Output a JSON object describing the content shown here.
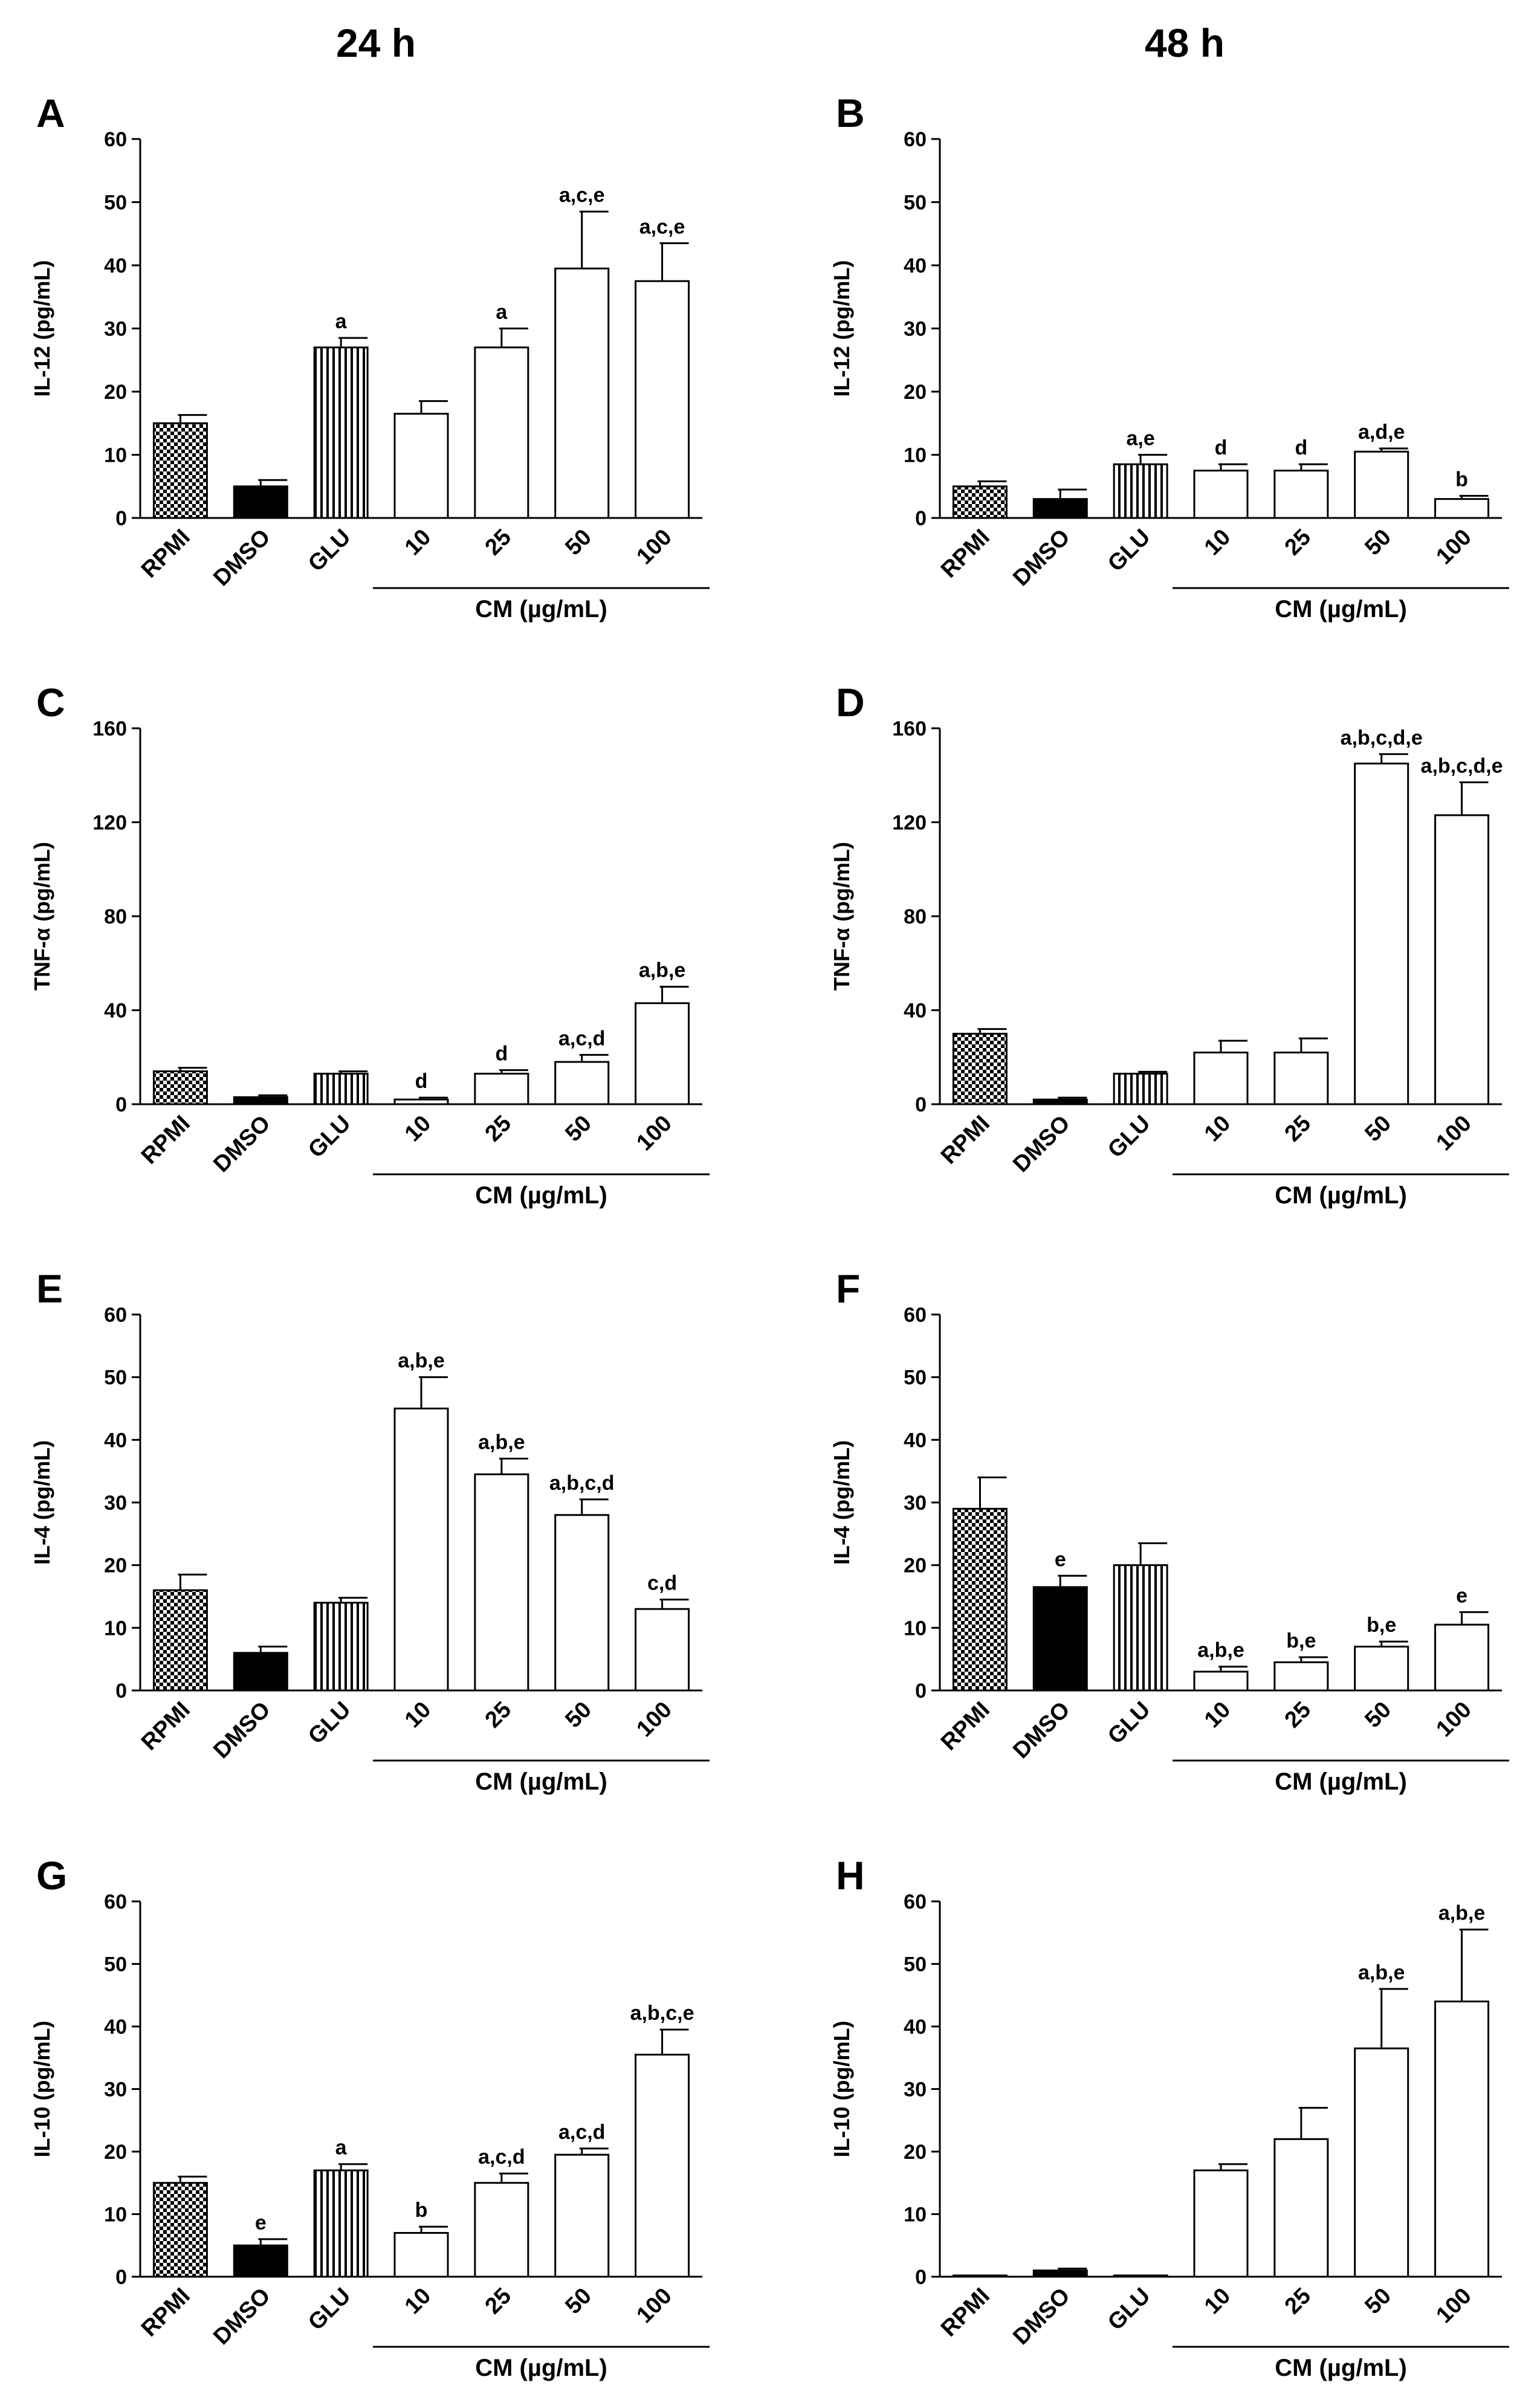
{
  "headers": {
    "left": "24 h",
    "right": "48 h"
  },
  "chart_data": [
    {
      "panel": "A",
      "type": "bar",
      "ylabel": "IL-12 (pg/mL)",
      "ylim": [
        0,
        60
      ],
      "yticks": [
        0,
        10,
        20,
        30,
        40,
        50,
        60
      ],
      "group_label": "CM (µg/mL)",
      "categories": [
        "RPMI",
        "DMSO",
        "GLU",
        "10",
        "25",
        "50",
        "100"
      ],
      "values": [
        15,
        5,
        27,
        16.5,
        27,
        39.5,
        37.5
      ],
      "errors": [
        1.3,
        1,
        1.5,
        2,
        3,
        9,
        6
      ],
      "significance": [
        "",
        "",
        "a",
        "",
        "a",
        "a,c,e",
        "a,c,e"
      ]
    },
    {
      "panel": "B",
      "type": "bar",
      "ylabel": "IL-12 (pg/mL)",
      "ylim": [
        0,
        60
      ],
      "yticks": [
        0,
        10,
        20,
        30,
        40,
        50,
        60
      ],
      "group_label": "CM (µg/mL)",
      "categories": [
        "RPMI",
        "DMSO",
        "GLU",
        "10",
        "25",
        "50",
        "100"
      ],
      "values": [
        5,
        3,
        8.5,
        7.5,
        7.5,
        10.5,
        3
      ],
      "errors": [
        0.8,
        1.5,
        1.5,
        1,
        1,
        0.5,
        0.5
      ],
      "significance": [
        "",
        "",
        "a,e",
        "d",
        "d",
        "a,d,e",
        "b"
      ]
    },
    {
      "panel": "C",
      "type": "bar",
      "ylabel": "TNF-α (pg/mL)",
      "ylim": [
        0,
        160
      ],
      "yticks": [
        0,
        40,
        80,
        120,
        160
      ],
      "group_label": "CM (µg/mL)",
      "categories": [
        "RPMI",
        "DMSO",
        "GLU",
        "10",
        "25",
        "50",
        "100"
      ],
      "values": [
        14,
        3,
        13,
        2,
        13,
        18,
        43
      ],
      "errors": [
        1.5,
        0.8,
        1,
        0.8,
        1.5,
        3,
        7
      ],
      "significance": [
        "",
        "",
        "",
        "d",
        "d",
        "a,c,d",
        "a,b,e"
      ]
    },
    {
      "panel": "D",
      "type": "bar",
      "ylabel": "TNF-α (pg/mL)",
      "ylim": [
        0,
        160
      ],
      "yticks": [
        0,
        40,
        80,
        120,
        160
      ],
      "group_label": "CM (µg/mL)",
      "categories": [
        "RPMI",
        "DMSO",
        "GLU",
        "10",
        "25",
        "50",
        "100"
      ],
      "values": [
        30,
        2,
        13,
        22,
        22,
        145,
        123
      ],
      "errors": [
        2,
        0.8,
        0.8,
        5,
        6,
        4,
        14
      ],
      "significance": [
        "",
        "",
        "",
        "",
        "",
        "a,b,c,d,e",
        "a,b,c,d,e"
      ]
    },
    {
      "panel": "E",
      "type": "bar",
      "ylabel": "IL-4 (pg/mL)",
      "ylim": [
        0,
        60
      ],
      "yticks": [
        0,
        10,
        20,
        30,
        40,
        50,
        60
      ],
      "group_label": "CM (µg/mL)",
      "categories": [
        "RPMI",
        "DMSO",
        "GLU",
        "10",
        "25",
        "50",
        "100"
      ],
      "values": [
        16,
        6,
        14,
        45,
        34.5,
        28,
        13
      ],
      "errors": [
        2.5,
        1,
        0.8,
        5,
        2.5,
        2.5,
        1.5
      ],
      "significance": [
        "",
        "",
        "",
        "a,b,e",
        "a,b,e",
        "a,b,c,d",
        "c,d"
      ]
    },
    {
      "panel": "F",
      "type": "bar",
      "ylabel": "IL-4 (pg/mL)",
      "ylim": [
        0,
        60
      ],
      "yticks": [
        0,
        10,
        20,
        30,
        40,
        50,
        60
      ],
      "group_label": "CM (µg/mL)",
      "categories": [
        "RPMI",
        "DMSO",
        "GLU",
        "10",
        "25",
        "50",
        "100"
      ],
      "values": [
        29,
        16.5,
        20,
        3,
        4.5,
        7,
        10.5
      ],
      "errors": [
        5,
        1.8,
        3.5,
        0.8,
        0.8,
        0.8,
        2
      ],
      "significance": [
        "",
        "e",
        "",
        "a,b,e",
        "b,e",
        "b,e",
        "e"
      ]
    },
    {
      "panel": "G",
      "type": "bar",
      "ylabel": "IL-10 (pg/mL)",
      "ylim": [
        0,
        60
      ],
      "yticks": [
        0,
        10,
        20,
        30,
        40,
        50,
        60
      ],
      "group_label": "CM (µg/mL)",
      "categories": [
        "RPMI",
        "DMSO",
        "GLU",
        "10",
        "25",
        "50",
        "100"
      ],
      "values": [
        15,
        5,
        17,
        7,
        15,
        19.5,
        35.5
      ],
      "errors": [
        1,
        1,
        1,
        1,
        1.5,
        1,
        4
      ],
      "significance": [
        "",
        "e",
        "a",
        "b",
        "a,c,d",
        "a,c,d",
        "a,b,c,e"
      ]
    },
    {
      "panel": "H",
      "type": "bar",
      "ylabel": "IL-10 (pg/mL)",
      "ylim": [
        0,
        60
      ],
      "yticks": [
        0,
        10,
        20,
        30,
        40,
        50,
        60
      ],
      "group_label": "CM (µg/mL)",
      "categories": [
        "RPMI",
        "DMSO",
        "GLU",
        "10",
        "25",
        "50",
        "100"
      ],
      "values": [
        0.2,
        1,
        0.2,
        17,
        22,
        36.5,
        44
      ],
      "errors": [
        0,
        0.3,
        0,
        1,
        5,
        9.5,
        11.5
      ],
      "significance": [
        "",
        "",
        "",
        "",
        "",
        "a,b,e",
        "a,b,e"
      ]
    }
  ],
  "colors": {
    "ink": "#000000",
    "background": "#ffffff"
  }
}
